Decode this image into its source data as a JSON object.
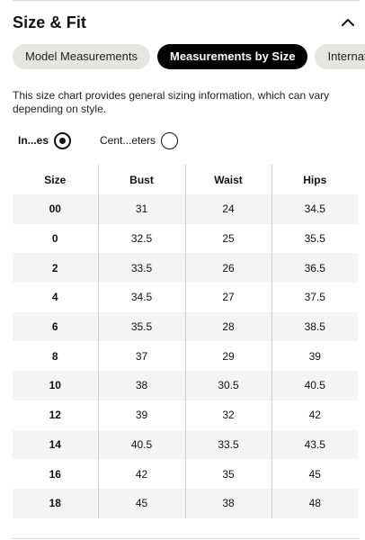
{
  "section": {
    "title": "Size & Fit",
    "toggle_icon": "chevron-up-icon"
  },
  "tabs": [
    {
      "label": "Model Measurements",
      "active": false
    },
    {
      "label": "Measurements by Size",
      "active": true
    },
    {
      "label": "International",
      "active": false
    }
  ],
  "description": "This size chart provides general sizing information, which can vary depending on style.",
  "units": {
    "inches_label": "In...es",
    "inches_selected": true,
    "centimeters_label": "Cent...eters",
    "centimeters_selected": false
  },
  "table": {
    "headers": [
      "Size",
      "Bust",
      "Waist",
      "Hips"
    ],
    "rows": [
      [
        "00",
        "31",
        "24",
        "34.5"
      ],
      [
        "0",
        "32.5",
        "25",
        "35.5"
      ],
      [
        "2",
        "33.5",
        "26",
        "36.5"
      ],
      [
        "4",
        "34.5",
        "27",
        "37.5"
      ],
      [
        "6",
        "35.5",
        "28",
        "38.5"
      ],
      [
        "8",
        "37",
        "29",
        "39"
      ],
      [
        "10",
        "38",
        "30.5",
        "40.5"
      ],
      [
        "12",
        "39",
        "32",
        "42"
      ],
      [
        "14",
        "40.5",
        "33.5",
        "43.5"
      ],
      [
        "16",
        "42",
        "35",
        "45"
      ],
      [
        "18",
        "45",
        "38",
        "48"
      ]
    ]
  }
}
